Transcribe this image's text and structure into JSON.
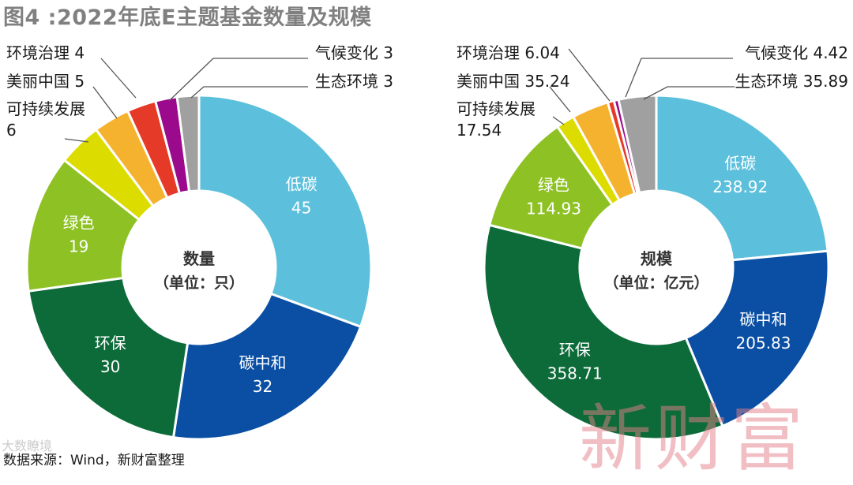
{
  "title": "图4 :2022年底E主题基金数量及规模",
  "source": "数据来源：Wind，新财富整理",
  "watermark_left": "大数瞭境",
  "watermark_right": "新财富",
  "chart_data": [
    {
      "type": "pie",
      "center_label": [
        "数量",
        "（单位：只）"
      ],
      "slices": [
        {
          "name": "低碳",
          "value": 45,
          "value_text": "45",
          "color": "#5cc0dc",
          "label_text": "#ffffff",
          "label_pos": "inside"
        },
        {
          "name": "碳中和",
          "value": 32,
          "value_text": "32",
          "color": "#0a4fa3",
          "label_text": "#ffffff",
          "label_pos": "inside"
        },
        {
          "name": "环保",
          "value": 30,
          "value_text": "30",
          "color": "#0d6b3a",
          "label_text": "#ffffff",
          "label_pos": "inside"
        },
        {
          "name": "绿色",
          "value": 19,
          "value_text": "19",
          "color": "#8ec124",
          "label_text": "#ffffff",
          "label_pos": "inside"
        },
        {
          "name": "可持续发展",
          "value": 6,
          "value_text": "6",
          "color": "#dcdc00",
          "label_text": "#1a1a1a",
          "label_pos": "outside"
        },
        {
          "name": "美丽中国",
          "value": 5,
          "value_text": "5",
          "color": "#f5b22f",
          "label_text": "#1a1a1a",
          "label_pos": "outside"
        },
        {
          "name": "环境治理",
          "value": 4,
          "value_text": "4",
          "color": "#e53a27",
          "label_text": "#1a1a1a",
          "label_pos": "outside"
        },
        {
          "name": "气候变化",
          "value": 3,
          "value_text": "3",
          "color": "#9b0a8c",
          "label_text": "#1a1a1a",
          "label_pos": "outside"
        },
        {
          "name": "生态环境",
          "value": 3,
          "value_text": "3",
          "color": "#a0a0a0",
          "label_text": "#1a1a1a",
          "label_pos": "outside"
        }
      ]
    },
    {
      "type": "pie",
      "center_label": [
        "规模",
        "（单位：亿元）"
      ],
      "slices": [
        {
          "name": "低碳",
          "value": 238.92,
          "value_text": "238.92",
          "color": "#5cc0dc",
          "label_text": "#ffffff",
          "label_pos": "inside"
        },
        {
          "name": "碳中和",
          "value": 205.83,
          "value_text": "205.83",
          "color": "#0a4fa3",
          "label_text": "#ffffff",
          "label_pos": "inside"
        },
        {
          "name": "环保",
          "value": 358.71,
          "value_text": "358.71",
          "color": "#0d6b3a",
          "label_text": "#ffffff",
          "label_pos": "inside"
        },
        {
          "name": "绿色",
          "value": 114.93,
          "value_text": "114.93",
          "color": "#8ec124",
          "label_text": "#ffffff",
          "label_pos": "inside"
        },
        {
          "name": "可持续发展",
          "value": 17.54,
          "value_text": "17.54",
          "color": "#dcdc00",
          "label_text": "#1a1a1a",
          "label_pos": "outside"
        },
        {
          "name": "美丽中国",
          "value": 35.24,
          "value_text": "35.24",
          "color": "#f5b22f",
          "label_text": "#1a1a1a",
          "label_pos": "outside"
        },
        {
          "name": "环境治理",
          "value": 6.04,
          "value_text": "6.04",
          "color": "#e53a27",
          "label_text": "#1a1a1a",
          "label_pos": "outside"
        },
        {
          "name": "气候变化",
          "value": 4.42,
          "value_text": "4.42",
          "color": "#9b0a8c",
          "label_text": "#1a1a1a",
          "label_pos": "outside"
        },
        {
          "name": "生态环境",
          "value": 35.89,
          "value_text": "35.89",
          "color": "#a0a0a0",
          "label_text": "#1a1a1a",
          "label_pos": "outside"
        }
      ]
    }
  ]
}
